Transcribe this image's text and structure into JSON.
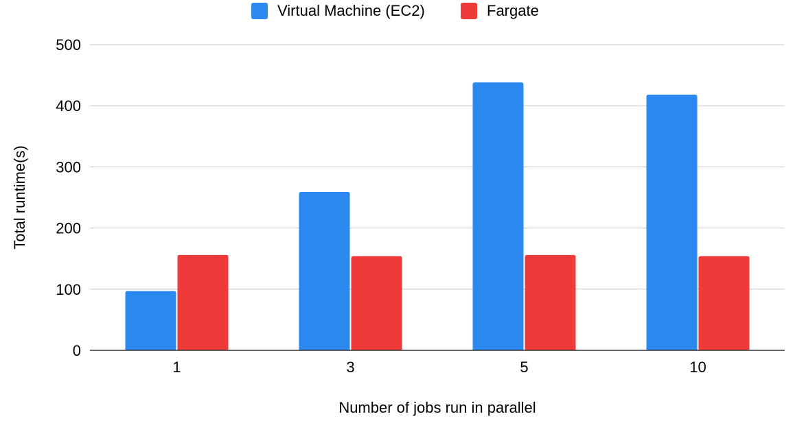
{
  "chart_data": {
    "type": "bar",
    "title": "",
    "xlabel": "Number of jobs run in parallel",
    "ylabel": "Total runtime(s)",
    "categories": [
      "1",
      "3",
      "5",
      "10"
    ],
    "series": [
      {
        "name": "Virtual Machine (EC2)",
        "color": "#2b88ee",
        "values": [
          97,
          259,
          438,
          418
        ]
      },
      {
        "name": "Fargate",
        "color": "#ee3a38",
        "values": [
          156,
          154,
          156,
          154
        ]
      }
    ],
    "ylim": [
      0,
      500
    ],
    "yticks": [
      "0",
      "100",
      "200",
      "300",
      "400",
      "500"
    ],
    "grid": true,
    "legend_position": "top-center"
  }
}
